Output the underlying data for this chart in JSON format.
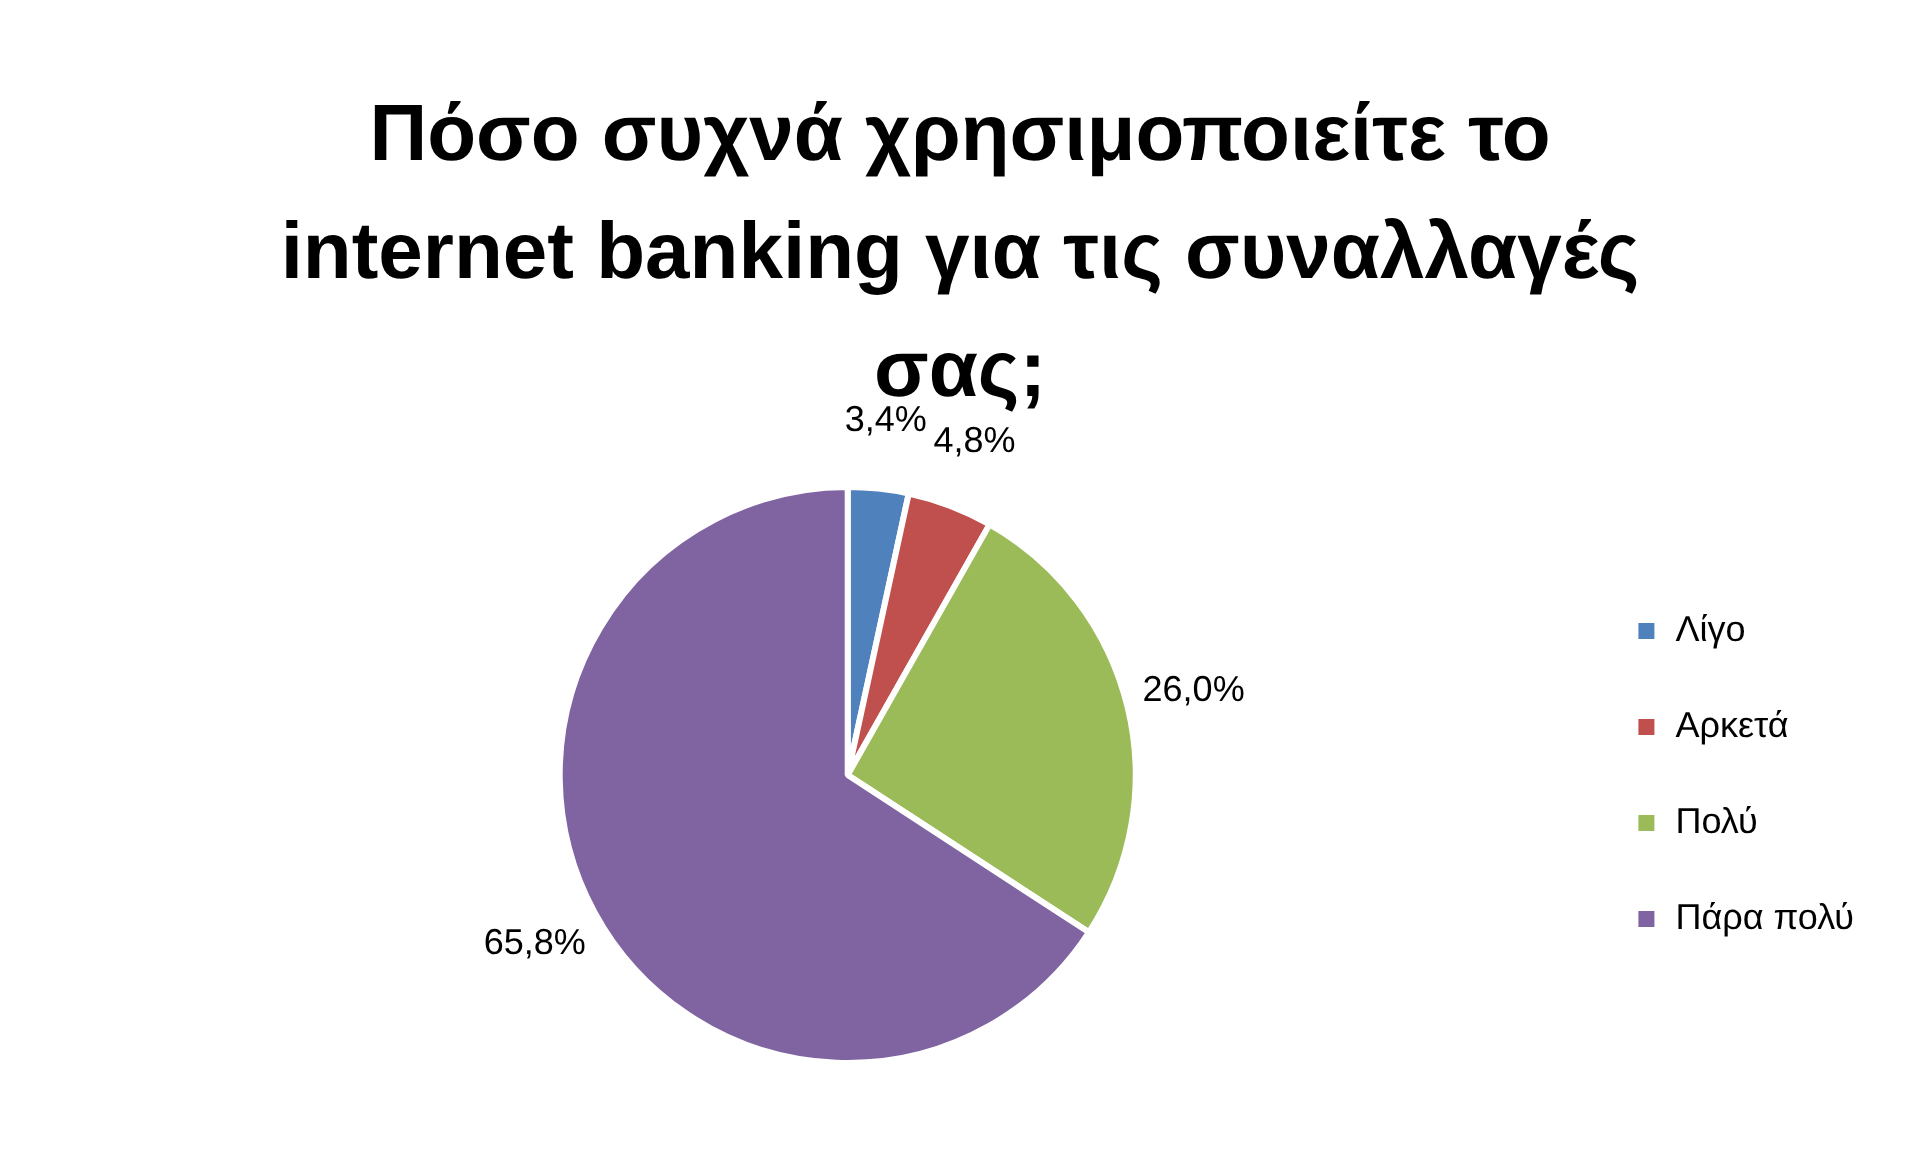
{
  "chart_data": {
    "type": "pie",
    "title": "Πόσο συχνά χρησιμοποιείτε το internet banking για τις συναλλαγές σας;",
    "categories": [
      "Λίγο",
      "Αρκετά",
      "Πολύ",
      "Πάρα πολύ"
    ],
    "values": [
      3.4,
      4.8,
      26.0,
      65.8
    ],
    "value_labels": [
      "3,4%",
      "4,8%",
      "26,0%",
      "65,8%"
    ],
    "colors": [
      "#4f81bd",
      "#c0504d",
      "#9bbb59",
      "#8064a2"
    ],
    "legend": "right"
  }
}
